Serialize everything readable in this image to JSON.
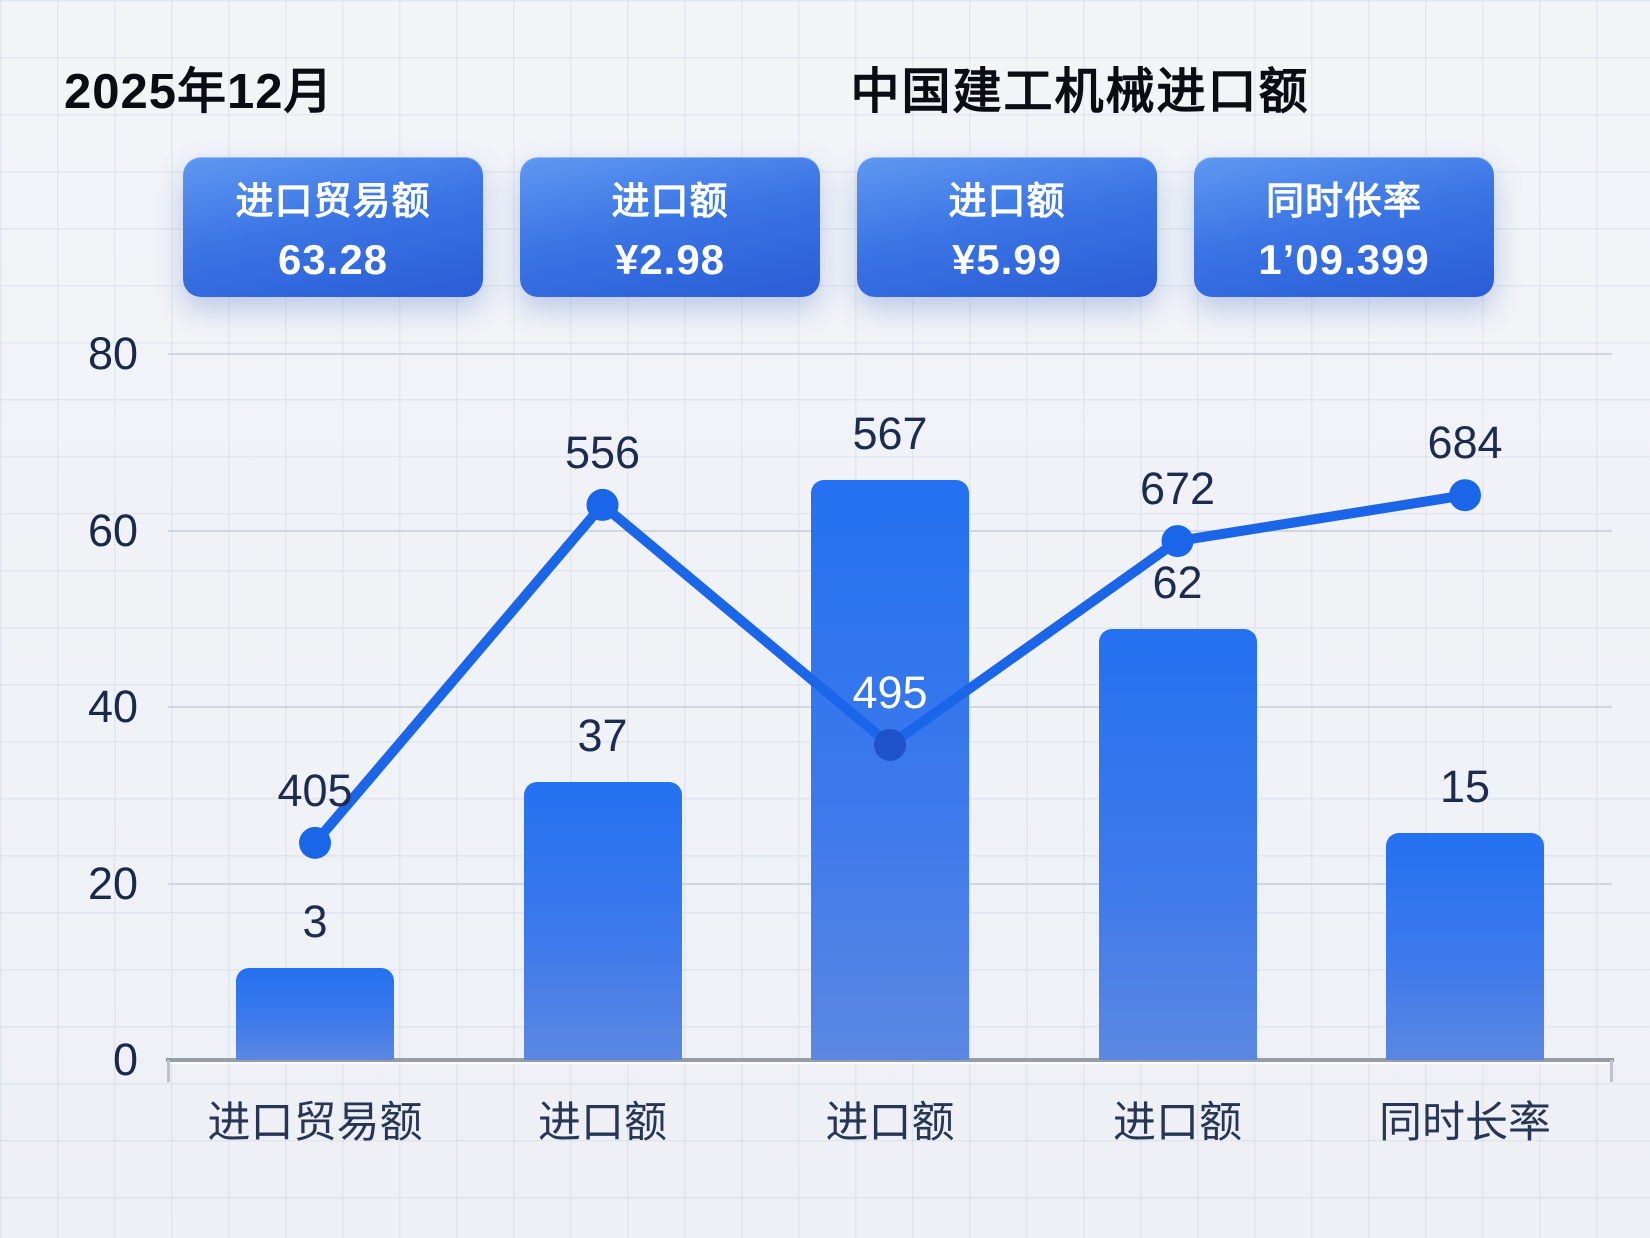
{
  "header": {
    "date": "2025年12月",
    "title": "中国建工机械进口额"
  },
  "cards": [
    {
      "label": "进口贸易额",
      "value": "63.28"
    },
    {
      "label": "进口额",
      "value": "¥2.98"
    },
    {
      "label": "进口额",
      "value": "¥5.99"
    },
    {
      "label": "同时伥率",
      "value": "1’09.399"
    }
  ],
  "chart_data": {
    "type": "bar+line",
    "categories": [
      "进口贸易额",
      "进口额",
      "进口额",
      "进口额",
      "同时长率"
    ],
    "y_axis": {
      "ticks": [
        0,
        20,
        40,
        60,
        80
      ],
      "range": [
        0,
        80
      ],
      "grid": true
    },
    "series": [
      {
        "name": "bars",
        "type": "bar",
        "labels": [
          "3",
          "37",
          "567",
          "62",
          "15"
        ],
        "drawn_values": [
          10.4,
          31.5,
          65.7,
          48.8,
          25.7
        ]
      },
      {
        "name": "line",
        "type": "line",
        "labels": [
          "405",
          "556",
          "495",
          "672",
          "684"
        ],
        "drawn_values": [
          24.6,
          62.9,
          35.7,
          58.8,
          64.0
        ]
      }
    ],
    "note": "printed data labels differ from plotted heights; drawn_values give plotted heights in axis units",
    "colors": {
      "bar_top": "#2471f1",
      "bar_bottom": "#5b87e2",
      "line": "#1b66e8",
      "dot_on_bar": "#1d52cb",
      "label_dark": "#1d2c4e",
      "label_light": "#ffffff",
      "card_top": "#5f98f1",
      "card_bottom": "#2a5cd6",
      "background": "#eef1f6"
    }
  }
}
